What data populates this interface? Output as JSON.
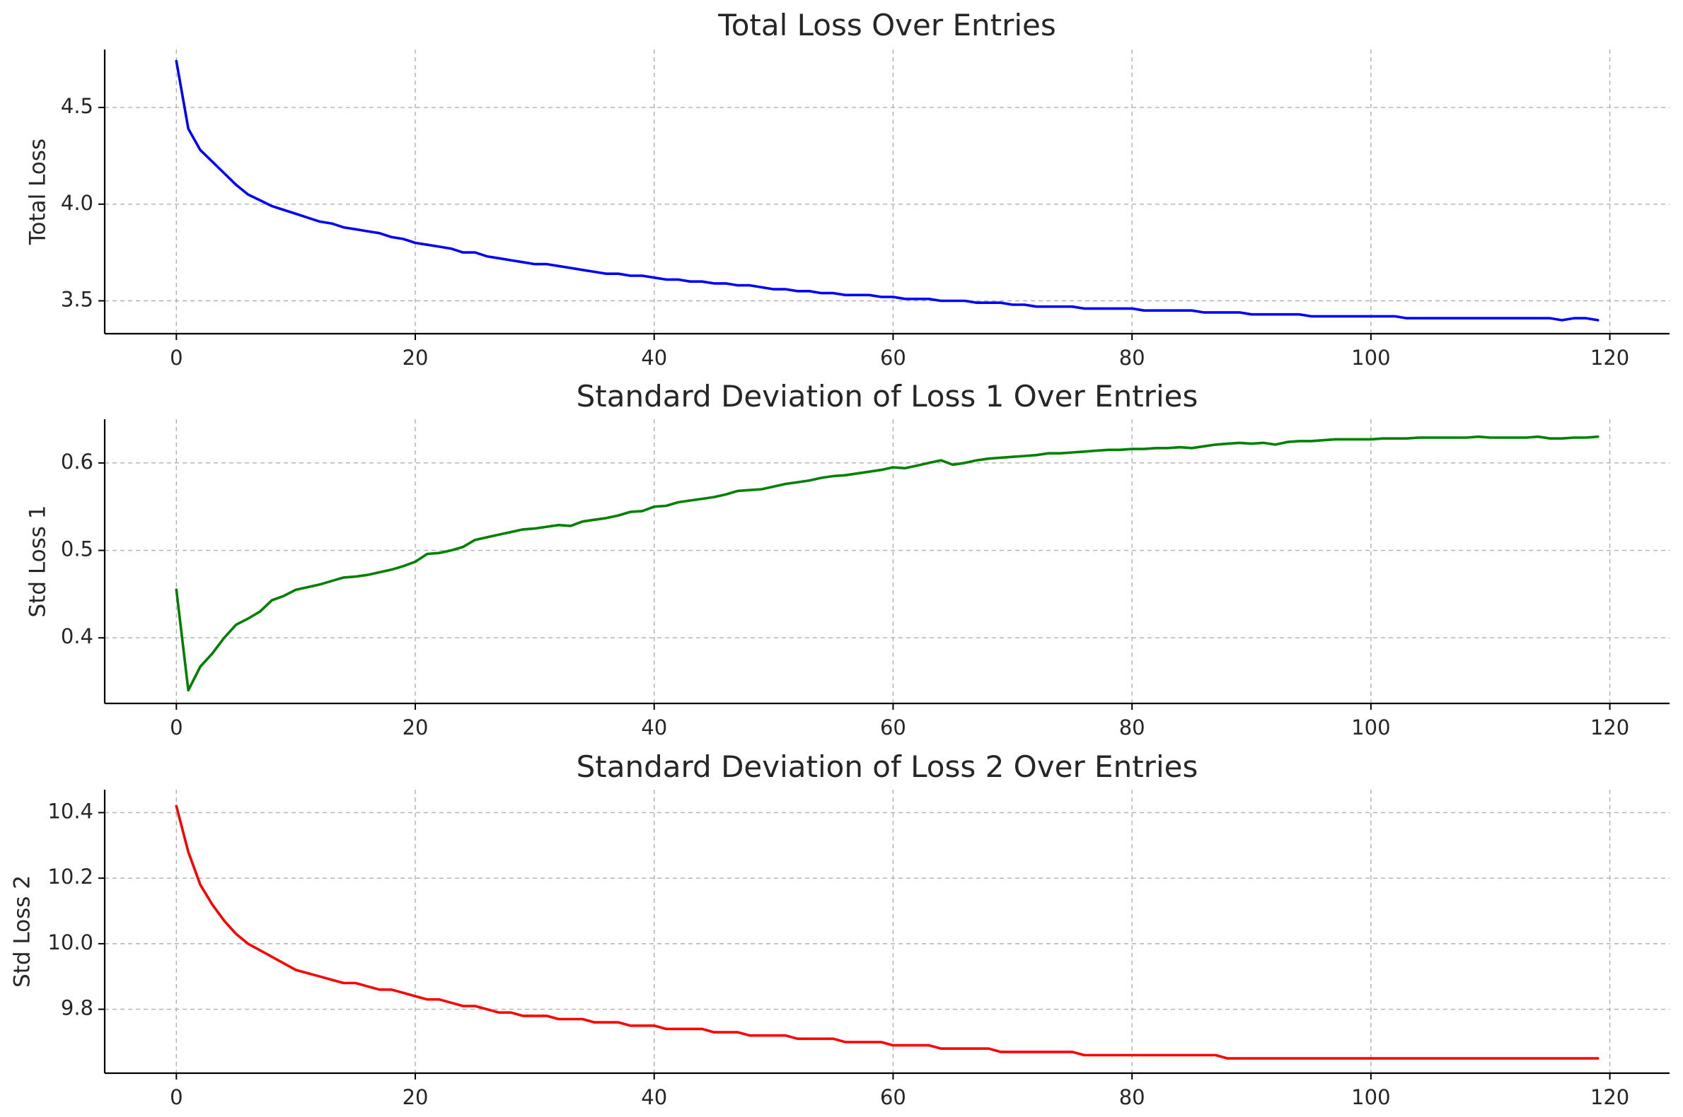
{
  "chart_data": [
    {
      "type": "line",
      "title": "Total Loss Over Entries",
      "xlabel": "",
      "ylabel": "Total Loss",
      "xlim": [
        -6,
        125
      ],
      "ylim": [
        3.33,
        4.8
      ],
      "xticks": [
        0,
        20,
        40,
        60,
        80,
        100,
        120
      ],
      "yticks": [
        3.5,
        4.0,
        4.5
      ],
      "tick_decimals": 1,
      "grid": true,
      "color": "#0000ff",
      "x_start": 0,
      "values": [
        4.74,
        4.39,
        4.28,
        4.22,
        4.16,
        4.1,
        4.05,
        4.02,
        3.99,
        3.97,
        3.95,
        3.93,
        3.91,
        3.9,
        3.88,
        3.87,
        3.86,
        3.85,
        3.83,
        3.82,
        3.8,
        3.79,
        3.78,
        3.77,
        3.75,
        3.75,
        3.73,
        3.72,
        3.71,
        3.7,
        3.69,
        3.69,
        3.68,
        3.67,
        3.66,
        3.65,
        3.64,
        3.64,
        3.63,
        3.63,
        3.62,
        3.61,
        3.61,
        3.6,
        3.6,
        3.59,
        3.59,
        3.58,
        3.58,
        3.57,
        3.56,
        3.56,
        3.55,
        3.55,
        3.54,
        3.54,
        3.53,
        3.53,
        3.53,
        3.52,
        3.52,
        3.51,
        3.51,
        3.51,
        3.5,
        3.5,
        3.5,
        3.49,
        3.49,
        3.49,
        3.48,
        3.48,
        3.47,
        3.47,
        3.47,
        3.47,
        3.46,
        3.46,
        3.46,
        3.46,
        3.46,
        3.45,
        3.45,
        3.45,
        3.45,
        3.45,
        3.44,
        3.44,
        3.44,
        3.44,
        3.43,
        3.43,
        3.43,
        3.43,
        3.43,
        3.42,
        3.42,
        3.42,
        3.42,
        3.42,
        3.42,
        3.42,
        3.42,
        3.41,
        3.41,
        3.41,
        3.41,
        3.41,
        3.41,
        3.41,
        3.41,
        3.41,
        3.41,
        3.41,
        3.41,
        3.41,
        3.4,
        3.41,
        3.41,
        3.4
      ]
    },
    {
      "type": "line",
      "title": "Standard Deviation of Loss 1 Over Entries",
      "xlabel": "",
      "ylabel": "Std Loss 1",
      "xlim": [
        -6,
        125
      ],
      "ylim": [
        0.325,
        0.65
      ],
      "xticks": [
        0,
        20,
        40,
        60,
        80,
        100,
        120
      ],
      "yticks": [
        0.4,
        0.5,
        0.6
      ],
      "tick_decimals": 1,
      "grid": true,
      "color": "#008000",
      "x_start": 0,
      "values": [
        0.455,
        0.34,
        0.367,
        0.382,
        0.4,
        0.415,
        0.422,
        0.43,
        0.443,
        0.448,
        0.455,
        0.458,
        0.461,
        0.465,
        0.469,
        0.47,
        0.472,
        0.475,
        0.478,
        0.482,
        0.487,
        0.496,
        0.497,
        0.5,
        0.504,
        0.512,
        0.515,
        0.518,
        0.521,
        0.524,
        0.525,
        0.527,
        0.529,
        0.528,
        0.533,
        0.535,
        0.537,
        0.54,
        0.544,
        0.545,
        0.55,
        0.551,
        0.555,
        0.557,
        0.559,
        0.561,
        0.564,
        0.568,
        0.569,
        0.57,
        0.573,
        0.576,
        0.578,
        0.58,
        0.583,
        0.585,
        0.586,
        0.588,
        0.59,
        0.592,
        0.595,
        0.594,
        0.597,
        0.6,
        0.603,
        0.598,
        0.6,
        0.603,
        0.605,
        0.606,
        0.607,
        0.608,
        0.609,
        0.611,
        0.611,
        0.612,
        0.613,
        0.614,
        0.615,
        0.615,
        0.616,
        0.616,
        0.617,
        0.617,
        0.618,
        0.617,
        0.619,
        0.621,
        0.622,
        0.623,
        0.622,
        0.623,
        0.621,
        0.624,
        0.625,
        0.625,
        0.626,
        0.627,
        0.627,
        0.627,
        0.627,
        0.628,
        0.628,
        0.628,
        0.629,
        0.629,
        0.629,
        0.629,
        0.629,
        0.63,
        0.629,
        0.629,
        0.629,
        0.629,
        0.63,
        0.628,
        0.628,
        0.629,
        0.629,
        0.63
      ]
    },
    {
      "type": "line",
      "title": "Standard Deviation of Loss 2 Over Entries",
      "xlabel": "",
      "ylabel": "Std Loss 2",
      "xlim": [
        -6,
        125
      ],
      "ylim": [
        9.605,
        10.47
      ],
      "xticks": [
        0,
        20,
        40,
        60,
        80,
        100,
        120
      ],
      "yticks": [
        9.8,
        10.0,
        10.2,
        10.4
      ],
      "tick_decimals": 1,
      "grid": true,
      "color": "#ff0000",
      "x_start": 0,
      "values": [
        10.42,
        10.28,
        10.18,
        10.12,
        10.07,
        10.03,
        10.0,
        9.98,
        9.96,
        9.94,
        9.92,
        9.91,
        9.9,
        9.89,
        9.88,
        9.88,
        9.87,
        9.86,
        9.86,
        9.85,
        9.84,
        9.83,
        9.83,
        9.82,
        9.81,
        9.81,
        9.8,
        9.79,
        9.79,
        9.78,
        9.78,
        9.78,
        9.77,
        9.77,
        9.77,
        9.76,
        9.76,
        9.76,
        9.75,
        9.75,
        9.75,
        9.74,
        9.74,
        9.74,
        9.74,
        9.73,
        9.73,
        9.73,
        9.72,
        9.72,
        9.72,
        9.72,
        9.71,
        9.71,
        9.71,
        9.71,
        9.7,
        9.7,
        9.7,
        9.7,
        9.69,
        9.69,
        9.69,
        9.69,
        9.68,
        9.68,
        9.68,
        9.68,
        9.68,
        9.67,
        9.67,
        9.67,
        9.67,
        9.67,
        9.67,
        9.67,
        9.66,
        9.66,
        9.66,
        9.66,
        9.66,
        9.66,
        9.66,
        9.66,
        9.66,
        9.66,
        9.66,
        9.66,
        9.65,
        9.65,
        9.65,
        9.65,
        9.65,
        9.65,
        9.65,
        9.65,
        9.65,
        9.65,
        9.65,
        9.65,
        9.65,
        9.65,
        9.65,
        9.65,
        9.65,
        9.65,
        9.65,
        9.65,
        9.65,
        9.65,
        9.65,
        9.65,
        9.65,
        9.65,
        9.65,
        9.65,
        9.65,
        9.65,
        9.65,
        9.65
      ]
    }
  ]
}
